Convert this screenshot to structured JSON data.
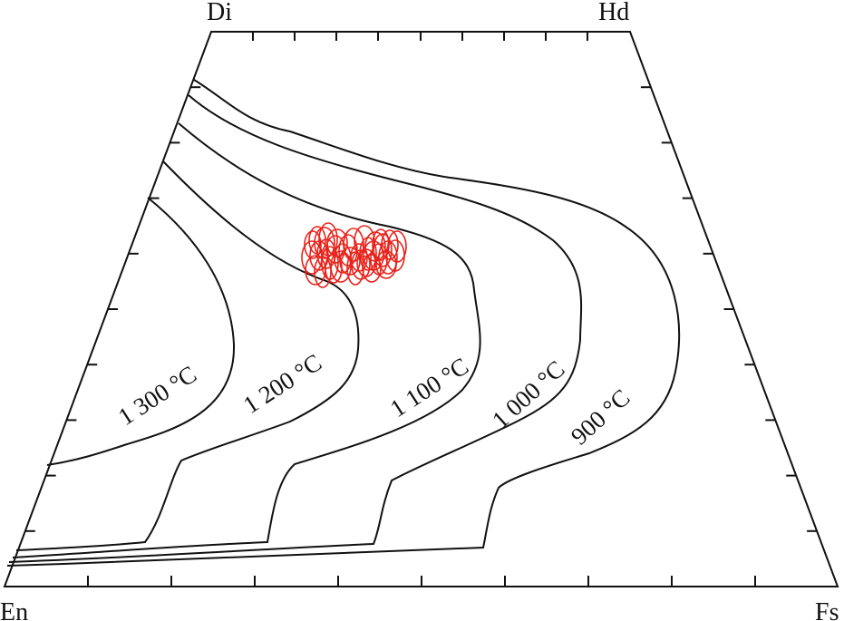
{
  "diagram": {
    "corners": {
      "top_left": "Di",
      "top_right": "Hd",
      "bottom_left": "En",
      "bottom_right": "Fs"
    },
    "isotherm_labels": [
      "1 300 °C",
      "1 200 °C",
      "1 100 °C",
      "1 000 °C",
      "900 °C"
    ],
    "point_color": "#e8231b",
    "line_color": "#111111",
    "point_count": 35
  }
}
